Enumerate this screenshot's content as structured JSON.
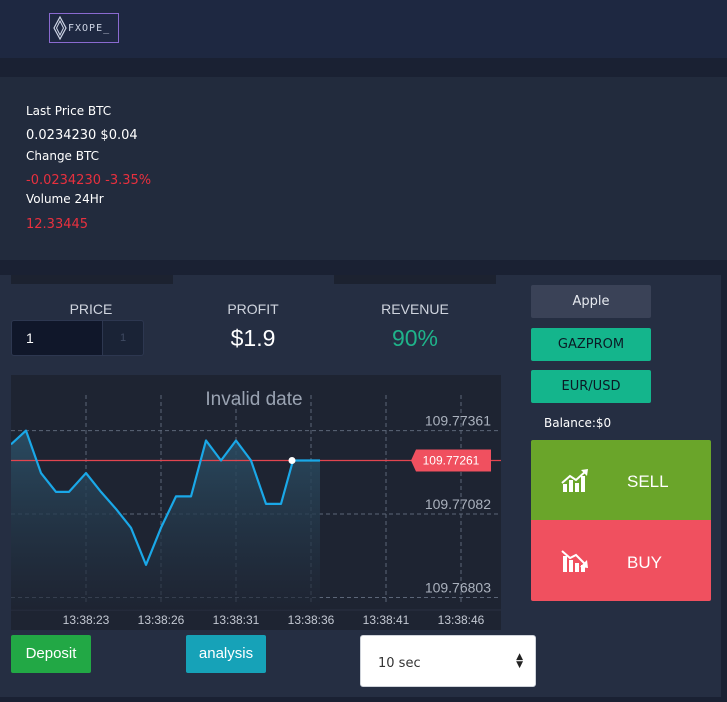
{
  "header": {
    "logo_text": "FXOPE_"
  },
  "stats": {
    "last_price_label": "Last Price BTC",
    "last_price_value": "0.0234230 $0.04",
    "change_label": "Change BTC",
    "change_value": "-0.0234230 -3.35%",
    "volume_label": "Volume 24Hr",
    "volume_value": "12.33445"
  },
  "trade": {
    "price_label": "PRICE",
    "price_input": "1",
    "price_step": "1",
    "profit_label": "PROFIT",
    "profit_value": "$1.9",
    "revenue_label": "REVENUE",
    "revenue_value": "90%"
  },
  "assets": {
    "items": [
      "Apple",
      "GAZPROM",
      "EUR/USD"
    ],
    "balance": "Balance:$0"
  },
  "actions": {
    "sell": "SELL",
    "buy": "BUY"
  },
  "buttons": {
    "deposit": "Deposit",
    "analysis": "analysis"
  },
  "interval": {
    "selected": "10 sec"
  },
  "colors": {
    "sell": "#6aa52a",
    "buy": "#f0505f",
    "accent_green": "#14b58c",
    "negative": "#e8303e",
    "line": "#1aa8e8"
  },
  "chart_data": {
    "type": "line",
    "title": "Invalid date",
    "x_ticks": [
      "13:38:23",
      "13:38:26",
      "13:38:31",
      "13:38:36",
      "13:38:41",
      "13:38:46"
    ],
    "y_ticks": [
      "109.77361",
      "109.77082",
      "109.76803"
    ],
    "current_value": "109.77261",
    "ylim": [
      109.76761,
      109.77547
    ],
    "series": [
      {
        "values": [
          109.77315,
          109.77361,
          109.77219,
          109.77156,
          109.77156,
          109.77219,
          109.77156,
          109.77099,
          109.77036,
          109.76912,
          109.77036,
          109.77141,
          109.77141,
          109.77328,
          109.77261,
          109.77328,
          109.77261,
          109.77116,
          109.77116,
          109.77261,
          109.77261,
          109.77261
        ]
      }
    ]
  }
}
